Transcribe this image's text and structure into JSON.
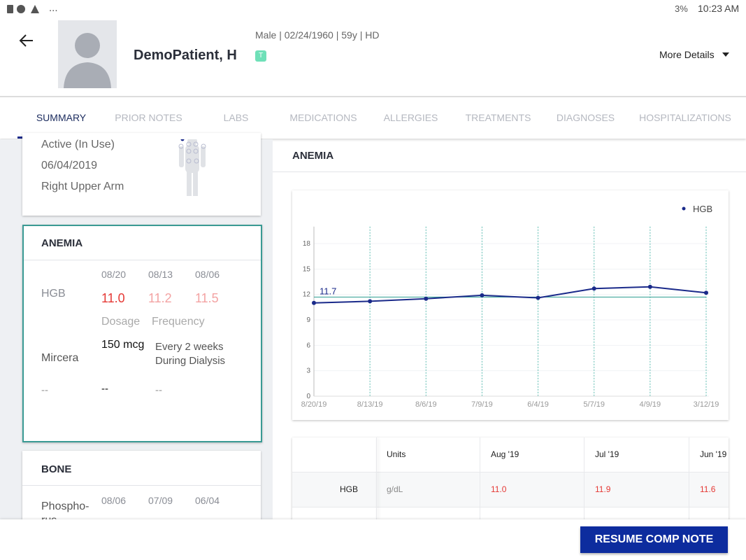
{
  "status_bar": {
    "left": "...",
    "battery": "3%",
    "time": "10:23 AM"
  },
  "header": {
    "patient_name": "DemoPatient, H",
    "demographics": "Male | 02/24/1960 | 59y  | HD",
    "badge": "T",
    "more_details": "More Details"
  },
  "tabs": [
    "SUMMARY",
    "PRIOR NOTES",
    "LABS",
    "MEDICATIONS",
    "ALLERGIES",
    "TREATMENTS",
    "DIAGNOSES",
    "HOSPITALIZATIONS"
  ],
  "access_card": {
    "lines": [
      "Active (In Use)",
      "06/04/2019",
      "Right Upper Arm"
    ]
  },
  "anemia_card": {
    "title": "ANEMIA",
    "dates": [
      "08/20",
      "08/13",
      "08/06"
    ],
    "hgb_label": "HGB",
    "hgb_values": [
      "11.0",
      "11.2",
      "11.5"
    ],
    "dosage_label": "Dosage",
    "frequency_label": "Frequency",
    "drug": "Mircera",
    "dose": "150 mcg",
    "frequency": "Every 2 weeks During Dialysis",
    "empty": [
      "--",
      "--",
      "--"
    ]
  },
  "bone_card": {
    "title": "BONE",
    "dates": [
      "08/06",
      "07/09",
      "06/04"
    ],
    "row_label": "Phospho-rus"
  },
  "panel": {
    "title": "ANEMIA"
  },
  "chart_data": {
    "type": "line",
    "categories": [
      "8/20/19",
      "8/13/19",
      "8/6/19",
      "7/9/19",
      "6/4/19",
      "5/7/19",
      "4/9/19",
      "3/12/19"
    ],
    "series": [
      {
        "name": "HGB",
        "color": "#1a2a8a",
        "values": [
          11.0,
          11.2,
          11.5,
          11.9,
          11.6,
          12.7,
          12.9,
          12.2
        ]
      }
    ],
    "ylim": [
      0,
      20
    ],
    "yticks": [
      0,
      3,
      6,
      9,
      12,
      15,
      18
    ],
    "grid": true,
    "reference_line": 11.7,
    "reference_color": "#2a9d8f"
  },
  "table": {
    "columns": [
      "Units",
      "Aug '19",
      "Jul '19",
      "Jun '19"
    ],
    "rows": [
      [
        "HGB",
        "g/dL",
        "11.0",
        "11.9",
        "11.6"
      ]
    ]
  },
  "button": "RESUME COMP NOTE"
}
